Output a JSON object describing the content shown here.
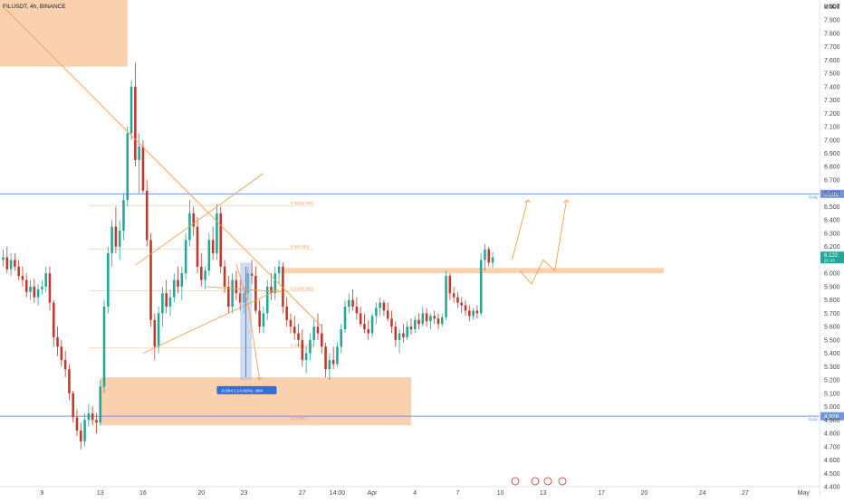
{
  "header": {
    "symbol_line": "FILUSDT, 4h, BINANCE",
    "currency": "USDT"
  },
  "colors": {
    "bull": "#26a69a",
    "bear": "#c0392b",
    "zone": "#f9c9a0",
    "blue_line": "#6f95e0",
    "trend_line": "#f5a04a",
    "measure_fill": "#9db8e6",
    "measure_label_bg": "#2f6fd8",
    "price_tag": "#26a69a",
    "axis_text": "#434651"
  },
  "chart_data": {
    "type": "candlestick",
    "y_axis": {
      "range": [
        4.4,
        8.05
      ],
      "ticks": [
        "8.000",
        "7.900",
        "7.800",
        "7.700",
        "7.600",
        "7.500",
        "7.400",
        "7.300",
        "7.200",
        "7.100",
        "7.000",
        "6.900",
        "6.800",
        "6.700",
        "6.600",
        "6.500",
        "6.400",
        "6.300",
        "6.200",
        "6.100",
        "6.000",
        "5.900",
        "5.800",
        "5.700",
        "5.600",
        "5.500",
        "5.400",
        "5.300",
        "5.200",
        "5.100",
        "5.000",
        "4.900",
        "4.800",
        "4.700",
        "4.600",
        "4.500",
        "4.400"
      ]
    },
    "x_axis": {
      "labels": [
        "9",
        "13",
        "16",
        "20",
        "23",
        "27",
        "14:00",
        "Apr",
        "4",
        "7",
        "10",
        "13",
        "17",
        "20",
        "24",
        "27",
        "May"
      ]
    },
    "candles": [
      [
        6.1,
        6.18,
        6.05,
        6.12
      ],
      [
        6.12,
        6.2,
        6.0,
        6.03
      ],
      [
        6.03,
        6.15,
        5.98,
        6.1
      ],
      [
        6.1,
        6.15,
        6.02,
        6.05
      ],
      [
        6.05,
        6.1,
        5.95,
        5.98
      ],
      [
        5.98,
        6.05,
        5.9,
        5.95
      ],
      [
        5.95,
        6.0,
        5.82,
        5.86
      ],
      [
        5.86,
        5.95,
        5.8,
        5.9
      ],
      [
        5.9,
        5.96,
        5.78,
        5.82
      ],
      [
        5.82,
        5.92,
        5.76,
        5.88
      ],
      [
        5.88,
        5.95,
        5.84,
        5.9
      ],
      [
        5.9,
        6.05,
        5.86,
        6.0
      ],
      [
        6.0,
        6.05,
        5.72,
        5.78
      ],
      [
        5.78,
        5.8,
        5.45,
        5.52
      ],
      [
        5.52,
        5.6,
        5.38,
        5.45
      ],
      [
        5.45,
        5.5,
        5.3,
        5.35
      ],
      [
        5.35,
        5.42,
        5.22,
        5.28
      ],
      [
        5.28,
        5.32,
        5.05,
        5.1
      ],
      [
        5.1,
        5.12,
        4.88,
        4.92
      ],
      [
        4.92,
        4.98,
        4.78,
        4.82
      ],
      [
        4.82,
        4.88,
        4.68,
        4.74
      ],
      [
        4.74,
        4.95,
        4.7,
        4.9
      ],
      [
        4.9,
        5.02,
        4.85,
        4.95
      ],
      [
        4.95,
        5.0,
        4.86,
        4.9
      ],
      [
        4.9,
        4.95,
        4.8,
        4.88
      ],
      [
        4.88,
        5.2,
        4.86,
        5.15
      ],
      [
        5.15,
        5.8,
        5.1,
        5.75
      ],
      [
        5.75,
        6.2,
        5.7,
        6.15
      ],
      [
        6.15,
        6.4,
        6.05,
        6.35
      ],
      [
        6.35,
        6.5,
        6.15,
        6.2
      ],
      [
        6.2,
        6.4,
        6.1,
        6.32
      ],
      [
        6.32,
        6.6,
        6.25,
        6.55
      ],
      [
        6.55,
        7.1,
        6.5,
        7.05
      ],
      [
        7.05,
        7.45,
        7.0,
        7.4
      ],
      [
        7.4,
        7.58,
        6.8,
        6.85
      ],
      [
        6.85,
        7.05,
        6.6,
        6.95
      ],
      [
        6.95,
        7.0,
        6.6,
        6.62
      ],
      [
        6.62,
        6.7,
        6.2,
        6.25
      ],
      [
        6.25,
        6.3,
        5.6,
        5.65
      ],
      [
        5.65,
        5.7,
        5.35,
        5.45
      ],
      [
        5.45,
        5.75,
        5.4,
        5.7
      ],
      [
        5.7,
        5.9,
        5.6,
        5.85
      ],
      [
        5.85,
        5.95,
        5.7,
        5.75
      ],
      [
        5.75,
        5.88,
        5.68,
        5.82
      ],
      [
        5.82,
        6.0,
        5.78,
        5.95
      ],
      [
        5.95,
        6.05,
        5.85,
        5.9
      ],
      [
        5.9,
        6.05,
        5.8,
        6.0
      ],
      [
        6.0,
        6.3,
        5.95,
        6.25
      ],
      [
        6.25,
        6.55,
        6.2,
        6.45
      ],
      [
        6.45,
        6.5,
        6.28,
        6.35
      ],
      [
        6.35,
        6.42,
        6.0,
        6.05
      ],
      [
        6.05,
        6.15,
        5.9,
        5.95
      ],
      [
        5.95,
        6.05,
        5.88,
        6.02
      ],
      [
        6.02,
        6.3,
        5.98,
        6.25
      ],
      [
        6.25,
        6.35,
        6.1,
        6.15
      ],
      [
        6.15,
        6.52,
        6.1,
        6.45
      ],
      [
        6.45,
        6.5,
        6.0,
        6.05
      ],
      [
        6.05,
        6.1,
        5.85,
        5.9
      ],
      [
        5.9,
        5.98,
        5.7,
        5.75
      ],
      [
        5.75,
        6.0,
        5.7,
        5.95
      ],
      [
        5.95,
        6.02,
        5.8,
        5.85
      ],
      [
        5.85,
        5.95,
        5.72,
        5.78
      ],
      [
        5.78,
        5.9,
        5.7,
        5.85
      ],
      [
        5.85,
        6.05,
        5.8,
        6.0
      ],
      [
        6.0,
        6.1,
        5.92,
        5.98
      ],
      [
        5.98,
        6.05,
        5.7,
        5.72
      ],
      [
        5.72,
        5.8,
        5.55,
        5.6
      ],
      [
        5.6,
        5.75,
        5.55,
        5.7
      ],
      [
        5.7,
        5.95,
        5.65,
        5.9
      ],
      [
        5.9,
        6.0,
        5.8,
        5.85
      ],
      [
        5.85,
        6.05,
        5.8,
        6.0
      ],
      [
        6.0,
        6.1,
        5.92,
        6.05
      ],
      [
        6.05,
        6.08,
        5.7,
        5.75
      ],
      [
        5.75,
        5.82,
        5.6,
        5.65
      ],
      [
        5.65,
        5.7,
        5.55,
        5.6
      ],
      [
        5.6,
        5.68,
        5.5,
        5.55
      ],
      [
        5.55,
        5.62,
        5.45,
        5.5
      ],
      [
        5.5,
        5.58,
        5.3,
        5.35
      ],
      [
        5.35,
        5.45,
        5.25,
        5.4
      ],
      [
        5.4,
        5.55,
        5.35,
        5.5
      ],
      [
        5.5,
        5.65,
        5.45,
        5.6
      ],
      [
        5.6,
        5.7,
        5.5,
        5.55
      ],
      [
        5.55,
        5.62,
        5.4,
        5.45
      ],
      [
        5.45,
        5.48,
        5.22,
        5.28
      ],
      [
        5.28,
        5.4,
        5.2,
        5.35
      ],
      [
        5.35,
        5.45,
        5.28,
        5.32
      ],
      [
        5.32,
        5.48,
        5.3,
        5.45
      ],
      [
        5.45,
        5.62,
        5.4,
        5.58
      ],
      [
        5.58,
        5.8,
        5.55,
        5.75
      ],
      [
        5.75,
        5.85,
        5.7,
        5.8
      ],
      [
        5.8,
        5.88,
        5.72,
        5.75
      ],
      [
        5.75,
        5.82,
        5.65,
        5.7
      ],
      [
        5.7,
        5.75,
        5.6,
        5.62
      ],
      [
        5.62,
        5.7,
        5.55,
        5.58
      ],
      [
        5.58,
        5.65,
        5.5,
        5.55
      ],
      [
        5.55,
        5.7,
        5.52,
        5.68
      ],
      [
        5.68,
        5.78,
        5.62,
        5.74
      ],
      [
        5.74,
        5.82,
        5.68,
        5.78
      ],
      [
        5.78,
        5.8,
        5.68,
        5.72
      ],
      [
        5.72,
        5.78,
        5.64,
        5.66
      ],
      [
        5.66,
        5.72,
        5.55,
        5.6
      ],
      [
        5.6,
        5.64,
        5.45,
        5.5
      ],
      [
        5.5,
        5.58,
        5.4,
        5.55
      ],
      [
        5.55,
        5.62,
        5.48,
        5.52
      ],
      [
        5.52,
        5.64,
        5.5,
        5.6
      ],
      [
        5.6,
        5.66,
        5.54,
        5.58
      ],
      [
        5.58,
        5.68,
        5.55,
        5.65
      ],
      [
        5.65,
        5.7,
        5.58,
        5.62
      ],
      [
        5.62,
        5.75,
        5.6,
        5.7
      ],
      [
        5.7,
        5.74,
        5.6,
        5.64
      ],
      [
        5.64,
        5.7,
        5.58,
        5.68
      ],
      [
        5.68,
        5.72,
        5.62,
        5.66
      ],
      [
        5.66,
        5.7,
        5.58,
        5.62
      ],
      [
        5.62,
        5.7,
        5.6,
        5.67
      ],
      [
        5.67,
        6.02,
        5.65,
        5.98
      ],
      [
        5.98,
        6.0,
        5.8,
        5.85
      ],
      [
        5.85,
        5.9,
        5.78,
        5.82
      ],
      [
        5.82,
        5.86,
        5.74,
        5.78
      ],
      [
        5.78,
        5.82,
        5.7,
        5.76
      ],
      [
        5.76,
        5.8,
        5.68,
        5.72
      ],
      [
        5.72,
        5.76,
        5.64,
        5.68
      ],
      [
        5.68,
        5.74,
        5.65,
        5.72
      ],
      [
        5.72,
        5.76,
        5.66,
        5.7
      ],
      [
        5.7,
        6.15,
        5.68,
        6.1
      ],
      [
        6.1,
        6.22,
        6.02,
        6.18
      ],
      [
        6.18,
        6.2,
        6.05,
        6.08
      ],
      [
        6.08,
        6.16,
        6.04,
        6.12
      ]
    ],
    "horizontal_lines": [
      {
        "name": "top-blue-line",
        "price": 6.596,
        "label": "6.596",
        "tag": "Daily"
      },
      {
        "name": "bottom-blue-line",
        "price": 4.928,
        "label": "4.928",
        "tag": "Daily"
      }
    ],
    "current_price": {
      "label": "6.122",
      "sub": "25: 43"
    },
    "fib_levels": [
      {
        "ratio": "0.382(6.509)",
        "price": 6.509
      },
      {
        "ratio": "0.5(6.183)",
        "price": 6.183
      },
      {
        "ratio": "0.618(5.869)",
        "price": 5.869
      },
      {
        "ratio": "0.786(5.440)",
        "price": 5.44
      },
      {
        "ratio": "1(4.895)",
        "price": 4.895
      }
    ],
    "measurement": {
      "label": "-0.884 (-14.60%) -884"
    },
    "zones": [
      {
        "name": "top-supply-zone",
        "x_start": 0,
        "x_end": 32,
        "top": 8.05,
        "bottom": 7.55
      },
      {
        "name": "bottom-demand-zone",
        "x_start": 25,
        "x_end": 105,
        "top": 5.22,
        "bottom": 4.86
      },
      {
        "name": "mid-resistance-band",
        "x_start": 72,
        "x_end": 170,
        "top": 6.04,
        "bottom": 6.0
      }
    ]
  }
}
